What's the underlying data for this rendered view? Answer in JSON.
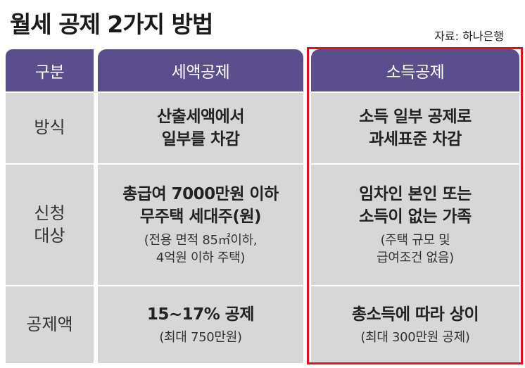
{
  "title": "월세 공제 2가지 방법",
  "source": "자료: 하나은행",
  "highlight_color": "#e0101e",
  "header_color": "#5b4e8c",
  "headers": {
    "label": "구분",
    "a": "세액공제",
    "b": "소득공제"
  },
  "rows": [
    {
      "label": [
        "방식"
      ],
      "a": {
        "main": [
          "산출세액에서",
          "일부를 차감"
        ],
        "sub": []
      },
      "b": {
        "main": [
          "소득 일부 공제로",
          "과세표준 차감"
        ],
        "sub": []
      }
    },
    {
      "label": [
        "신청",
        "대상"
      ],
      "a": {
        "main": [
          "총급여 7000만원 이하",
          "무주택 세대주(원)"
        ],
        "sub": [
          "(전용 면적 85㎡이하,",
          "4억원 이하 주택)"
        ]
      },
      "b": {
        "main": [
          "임차인 본인 또는",
          "소득이 없는 가족"
        ],
        "sub": [
          "(주택 규모 및",
          "급여조건 없음)"
        ]
      }
    },
    {
      "label": [
        "공제액"
      ],
      "a": {
        "main": [
          "15~17% 공제"
        ],
        "sub": [
          "(최대 750만원)"
        ]
      },
      "b": {
        "main": [
          "총소득에 따라 상이"
        ],
        "sub": [
          "(최대 300만원 공제)"
        ]
      }
    }
  ]
}
